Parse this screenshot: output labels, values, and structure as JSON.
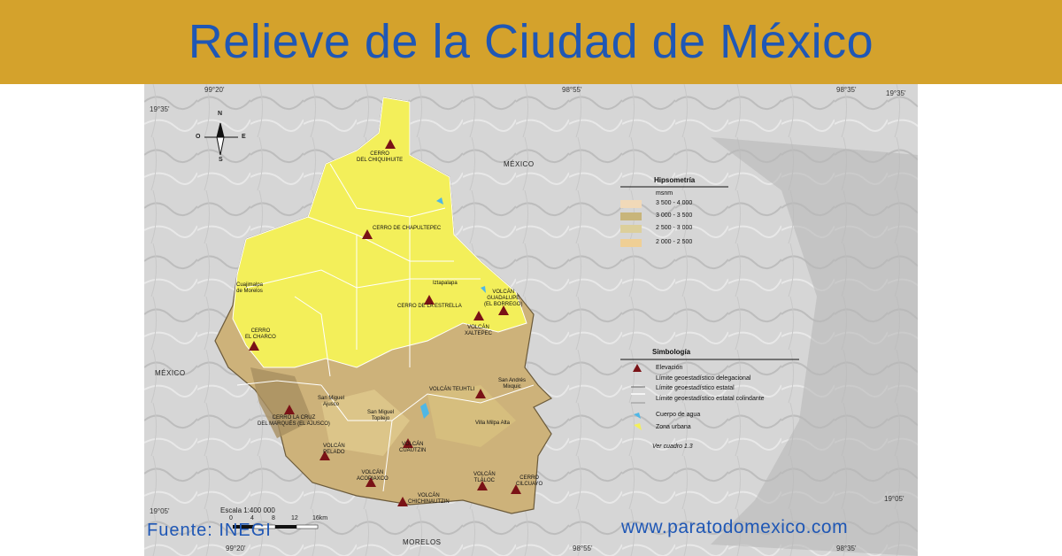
{
  "banner": {
    "title": "Relieve de la Ciudad de México"
  },
  "colors": {
    "banner_bg": "#d4a22c",
    "title_text": "#1f57b5",
    "zona_urbana": "#f3ef5a",
    "relief_gray": "#d9d9d9",
    "elevation_marker": "#7a1216"
  },
  "coordinates": {
    "lon_99_20": "99°20'",
    "lon_98_55": "98°55'",
    "lon_98_35": "98°35'",
    "lat_19_35": "19°35'",
    "lat_19_05": "19°05'"
  },
  "regions": {
    "mexico_top": "MÉXICO",
    "mexico_left": "MÉXICO",
    "morelos": "MORELOS"
  },
  "compass": {
    "n": "N",
    "s": "S",
    "e": "E",
    "o": "O"
  },
  "places": {
    "cerro_chiquihuite": "CERRO\nDEL CHIQUIHUITE",
    "cerro_chapultepec": "CERRO DE CHAPULTEPEC",
    "cuajimalpa": "Cuajimalpa\nde Morelos",
    "iztapalapa": "Iztapalapa",
    "cerro_estrella": "CERRO DE LA ESTRELLA",
    "volcan_guadalupe": "VOLCÁN\nGUADALUPE\n(EL BORREGO)",
    "volcan_xaltepec": "VOLCÁN\nXALTEPEC",
    "cerro_charco": "CERRO\nEL CHARCO",
    "san_miguel_ajusco": "San Miguel\nAjusco",
    "volcan_teuhtli": "VOLCÁN TEUHTLI",
    "san_andres_mixquic": "San Andrés\nMixquic",
    "cerro_cruz_marques": "CERRO LA CRUZ\nDEL MARQUÉS (EL AJUSCO)",
    "san_miguel_topilejo": "San Miguel\nTopilejo",
    "villa_milpa_alta": "Villa Milpa Alta",
    "volcan_pelado": "VOLCÁN\nPELADO",
    "volcan_cuautzin": "VOLCÁN\nCUAUTZIN",
    "volcan_acopiaxco": "VOLCÁN\nACOPIAXCO",
    "volcan_tlaloc": "VOLCÁN\nTLÁLOC",
    "cerro_cilcuayo": "CERRO\nCILCUAYO",
    "volcan_chichinautzin": "VOLCÁN\nCHICHINAUTZIN"
  },
  "hipsometria": {
    "title": "Hipsometría",
    "unit": "msnm",
    "items": [
      {
        "label": "3 500 - 4 000",
        "color": "#f1d9b8"
      },
      {
        "label": "3 000 - 3 500",
        "color": "#c8b57a"
      },
      {
        "label": "2 500 - 3 000",
        "color": "#dccf9b"
      },
      {
        "label": "2 000 - 2 500",
        "color": "#efcf95"
      }
    ]
  },
  "simbologia": {
    "title": "Simbología",
    "items": [
      "Elevación",
      "Límite geoestadístico delegacional",
      "Límite geoestadístico estatal",
      "Límite geoestadístico estatal colindante",
      "Cuerpo de agua",
      "Zona urbana"
    ],
    "note": "Ver cuadro 1.3"
  },
  "scale": {
    "label": "Escala 1:400 000",
    "ticks": [
      "0",
      "4",
      "8",
      "12",
      "16km"
    ]
  },
  "footer": {
    "fuente": "Fuente: INEGI",
    "website": "www.paratodomexico.com"
  }
}
